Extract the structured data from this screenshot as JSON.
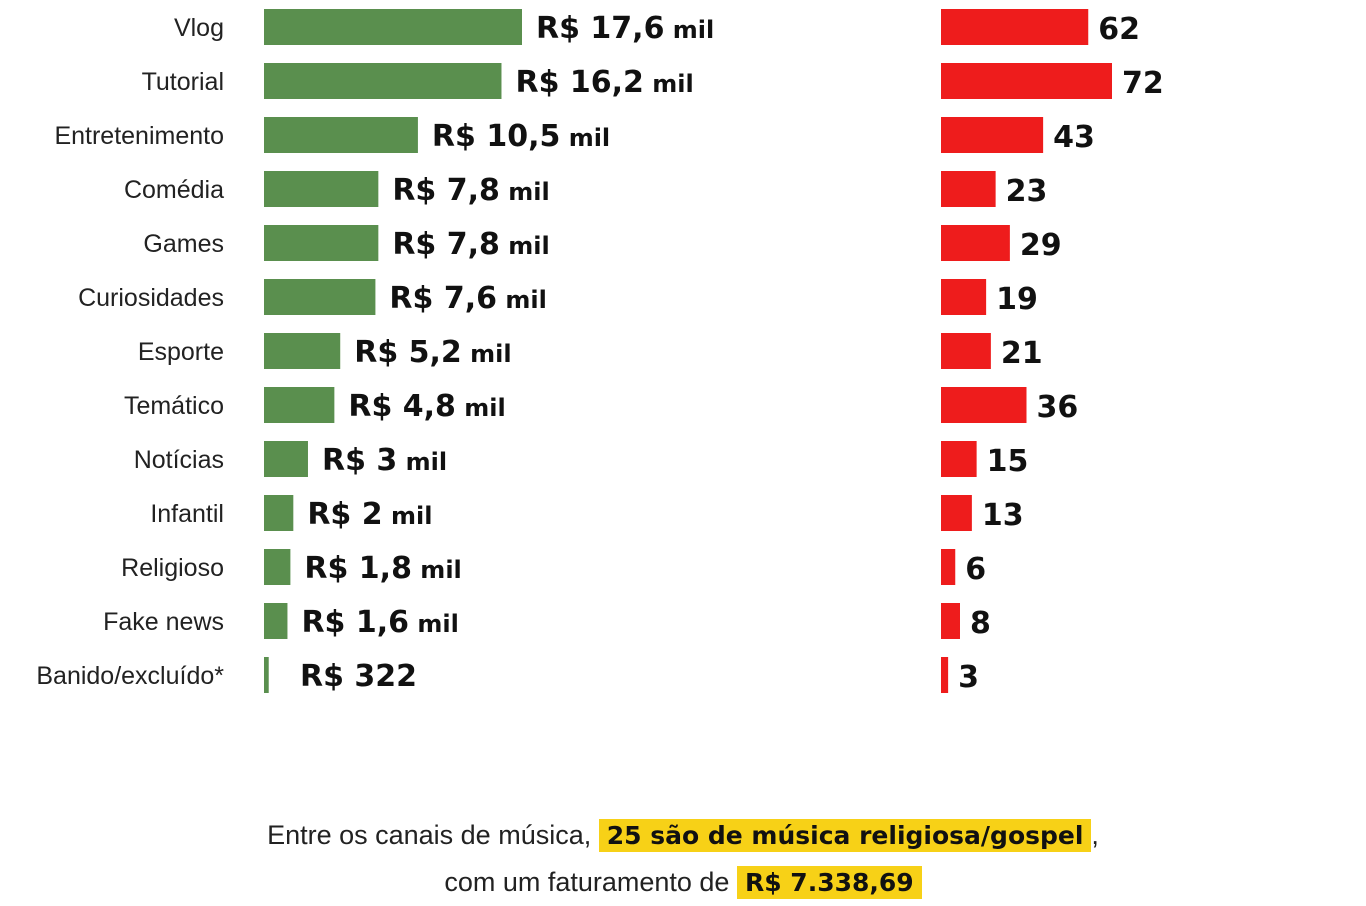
{
  "chart_data": [
    {
      "type": "bar",
      "orientation": "horizontal",
      "categories": [
        "Vlog",
        "Tutorial",
        "Entretenimento",
        "Comédia",
        "Games",
        "Curiosidades",
        "Esporte",
        "Temático",
        "Notícias",
        "Infantil",
        "Religioso",
        "Fake news",
        "Banido/excluído*"
      ],
      "values": [
        17600,
        16200,
        10500,
        7800,
        7800,
        7600,
        5200,
        4800,
        3000,
        2000,
        1800,
        1600,
        322
      ],
      "value_labels": [
        {
          "num": "R$ 17,6",
          "unit": "mil"
        },
        {
          "num": "R$ 16,2",
          "unit": "mil"
        },
        {
          "num": "R$ 10,5",
          "unit": "mil"
        },
        {
          "num": "R$ 7,8",
          "unit": "mil"
        },
        {
          "num": "R$ 7,8",
          "unit": "mil"
        },
        {
          "num": "R$ 7,6",
          "unit": "mil"
        },
        {
          "num": "R$ 5,2",
          "unit": "mil"
        },
        {
          "num": "R$ 4,8",
          "unit": "mil"
        },
        {
          "num": "R$ 3",
          "unit": "mil"
        },
        {
          "num": "R$ 2",
          "unit": "mil"
        },
        {
          "num": "R$ 1,8",
          "unit": "mil"
        },
        {
          "num": "R$ 1,6",
          "unit": "mil"
        },
        {
          "num": "R$ 322",
          "unit": ""
        }
      ],
      "color": "#5a8f4e",
      "xlim": [
        0,
        17600
      ]
    },
    {
      "type": "bar",
      "orientation": "horizontal",
      "categories": [
        "Vlog",
        "Tutorial",
        "Entretenimento",
        "Comédia",
        "Games",
        "Curiosidades",
        "Esporte",
        "Temático",
        "Notícias",
        "Infantil",
        "Religioso",
        "Fake news",
        "Banido/excluído*"
      ],
      "values": [
        62,
        72,
        43,
        23,
        29,
        19,
        21,
        36,
        15,
        13,
        6,
        8,
        3
      ],
      "value_labels": [
        "62",
        "72",
        "43",
        "23",
        "29",
        "19",
        "21",
        "36",
        "15",
        "13",
        "6",
        "8",
        "3"
      ],
      "color": "#ee1c1c",
      "xlim": [
        0,
        72
      ]
    }
  ],
  "footer": {
    "line1_prefix": "Entre os canais de música, ",
    "line1_highlight": "25 são de música religiosa/gospel",
    "line1_suffix": ",",
    "line2_prefix": "com um faturamento de ",
    "line2_highlight": "R$ 7.338,69",
    "highlight_color": "#f7d117"
  }
}
